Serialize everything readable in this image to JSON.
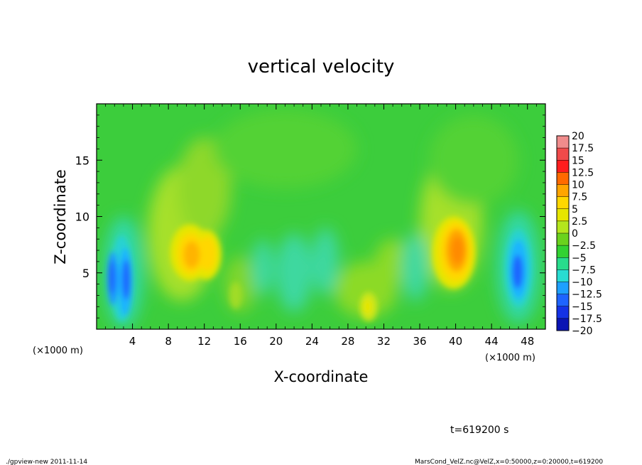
{
  "chart_data": {
    "type": "heatmap",
    "title": "vertical velocity",
    "xlabel": "X-coordinate",
    "ylabel": "Z-coordinate",
    "x_unit_left": "(×1000 m)",
    "x_unit_right": "(×1000 m)",
    "x_ticks": [
      "4",
      "8",
      "12",
      "16",
      "20",
      "24",
      "28",
      "32",
      "36",
      "40",
      "44",
      "48"
    ],
    "y_ticks": [
      "5",
      "10",
      "15"
    ],
    "xlim": [
      0,
      50
    ],
    "ylim": [
      0,
      20
    ],
    "colorbar": {
      "levels": [
        "20",
        "17.5",
        "15",
        "12.5",
        "10",
        "7.5",
        "5",
        "2.5",
        "0",
        "−2.5",
        "−5",
        "−7.5",
        "−10",
        "−12.5",
        "−15",
        "−17.5",
        "−20"
      ],
      "colors": [
        "#f08c8c",
        "#f04a4a",
        "#ff1e1e",
        "#ff6a00",
        "#ffa500",
        "#ffd700",
        "#e6e600",
        "#b4e61e",
        "#6ad21e",
        "#32d232",
        "#28dc8c",
        "#28dcd2",
        "#1ea0ff",
        "#1e64ff",
        "#1432e6",
        "#0a14b4",
        "#6400b4"
      ],
      "range": [
        -20,
        20
      ]
    },
    "features": [
      {
        "x": 3,
        "z": 4.8,
        "value": -9
      },
      {
        "x": 10.5,
        "z": 6.5,
        "value": 8
      },
      {
        "x": 12.5,
        "z": 6.5,
        "value": 7
      },
      {
        "x": 30,
        "z": 2.2,
        "value": 4
      },
      {
        "x": 40,
        "z": 7,
        "value": 11
      },
      {
        "x": 47,
        "z": 5.2,
        "value": -9
      }
    ]
  },
  "annotations": {
    "time": "t=619200 s",
    "footer_left": "./gpview-new  2011-11-14",
    "footer_right": "MarsCond_VelZ.nc@VelZ,x=0:50000,z=0:20000,t=619200"
  }
}
